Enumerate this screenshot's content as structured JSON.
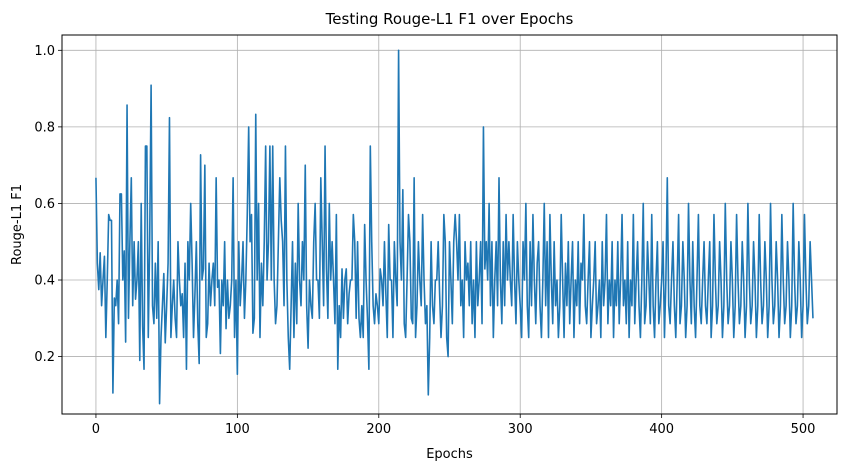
{
  "chart_data": {
    "type": "line",
    "title": "Testing Rouge-L1 F1 over Epochs",
    "xlabel": "Epochs",
    "ylabel": "Rouge-L1 F1",
    "xlim": [
      -24,
      524
    ],
    "ylim": [
      0.05,
      1.04
    ],
    "xticks": [
      0,
      100,
      200,
      300,
      400,
      500
    ],
    "xtick_labels": [
      "0",
      "100",
      "200",
      "300",
      "400",
      "500"
    ],
    "yticks": [
      0.2,
      0.4,
      0.6,
      0.8,
      1.0
    ],
    "ytick_labels": [
      "0.2",
      "0.4",
      "0.6",
      "0.8",
      "1.0"
    ],
    "grid": true,
    "line_color": "#1f77b4",
    "series": [
      {
        "x_start": 0,
        "x_step": 1,
        "values": [
          0.667,
          0.444,
          0.375,
          0.471,
          0.333,
          0.4,
          0.462,
          0.25,
          0.4,
          0.571,
          0.556,
          0.556,
          0.105,
          0.353,
          0.333,
          0.4,
          0.286,
          0.625,
          0.625,
          0.4,
          0.476,
          0.238,
          0.857,
          0.3,
          0.5,
          0.667,
          0.333,
          0.5,
          0.35,
          0.4,
          0.5,
          0.19,
          0.6,
          0.28,
          0.167,
          0.75,
          0.75,
          0.25,
          0.5,
          0.909,
          0.333,
          0.286,
          0.444,
          0.3,
          0.5,
          0.077,
          0.25,
          0.333,
          0.417,
          0.236,
          0.333,
          0.444,
          0.824,
          0.25,
          0.333,
          0.4,
          0.3,
          0.25,
          0.5,
          0.4,
          0.333,
          0.364,
          0.25,
          0.444,
          0.167,
          0.5,
          0.4,
          0.6,
          0.444,
          0.25,
          0.364,
          0.5,
          0.286,
          0.182,
          0.727,
          0.4,
          0.429,
          0.7,
          0.25,
          0.286,
          0.444,
          0.333,
          0.4,
          0.444,
          0.333,
          0.667,
          0.381,
          0.4,
          0.208,
          0.4,
          0.333,
          0.5,
          0.273,
          0.4,
          0.3,
          0.333,
          0.4,
          0.667,
          0.25,
          0.4,
          0.154,
          0.5,
          0.333,
          0.4,
          0.5,
          0.3,
          0.4,
          0.571,
          0.8,
          0.5,
          0.571,
          0.261,
          0.3,
          0.833,
          0.4,
          0.6,
          0.25,
          0.444,
          0.333,
          0.5,
          0.75,
          0.4,
          0.5,
          0.75,
          0.4,
          0.75,
          0.4,
          0.286,
          0.333,
          0.5,
          0.667,
          0.556,
          0.5,
          0.333,
          0.75,
          0.4,
          0.25,
          0.167,
          0.333,
          0.5,
          0.25,
          0.444,
          0.286,
          0.6,
          0.4,
          0.333,
          0.5,
          0.4,
          0.7,
          0.333,
          0.222,
          0.4,
          0.333,
          0.3,
          0.5,
          0.6,
          0.4,
          0.4,
          0.3,
          0.667,
          0.5,
          0.333,
          0.75,
          0.429,
          0.3,
          0.6,
          0.4,
          0.5,
          0.4,
          0.286,
          0.571,
          0.167,
          0.333,
          0.25,
          0.429,
          0.3,
          0.4,
          0.429,
          0.286,
          0.364,
          0.4,
          0.4,
          0.571,
          0.5,
          0.3,
          0.5,
          0.3,
          0.25,
          0.333,
          0.25,
          0.545,
          0.4,
          0.3,
          0.167,
          0.75,
          0.5,
          0.333,
          0.286,
          0.364,
          0.333,
          0.286,
          0.429,
          0.4,
          0.333,
          0.5,
          0.364,
          0.25,
          0.545,
          0.4,
          0.4,
          0.25,
          0.5,
          0.4,
          0.333,
          1.0,
          0.5,
          0.4,
          0.636,
          0.286,
          0.25,
          0.4,
          0.571,
          0.5,
          0.3,
          0.286,
          0.667,
          0.25,
          0.333,
          0.5,
          0.4,
          0.333,
          0.571,
          0.4,
          0.286,
          0.333,
          0.1,
          0.25,
          0.5,
          0.333,
          0.286,
          0.4,
          0.4,
          0.5,
          0.364,
          0.25,
          0.333,
          0.571,
          0.5,
          0.25,
          0.2,
          0.5,
          0.4,
          0.286,
          0.5,
          0.571,
          0.5,
          0.4,
          0.571,
          0.333,
          0.4,
          0.25,
          0.5,
          0.4,
          0.444,
          0.333,
          0.5,
          0.286,
          0.4,
          0.25,
          0.5,
          0.333,
          0.4,
          0.5,
          0.286,
          0.8,
          0.429,
          0.5,
          0.4,
          0.6,
          0.333,
          0.5,
          0.25,
          0.4,
          0.5,
          0.333,
          0.667,
          0.4,
          0.286,
          0.5,
          0.333,
          0.571,
          0.4,
          0.5,
          0.4,
          0.333,
          0.571,
          0.4,
          0.286,
          0.5,
          0.4,
          0.333,
          0.25,
          0.5,
          0.4,
          0.6,
          0.333,
          0.25,
          0.5,
          0.333,
          0.571,
          0.4,
          0.286,
          0.444,
          0.5,
          0.333,
          0.25,
          0.4,
          0.6,
          0.333,
          0.5,
          0.25,
          0.571,
          0.4,
          0.286,
          0.5,
          0.333,
          0.4,
          0.25,
          0.333,
          0.571,
          0.4,
          0.25,
          0.444,
          0.333,
          0.5,
          0.286,
          0.4,
          0.5,
          0.25,
          0.4,
          0.333,
          0.5,
          0.286,
          0.444,
          0.4,
          0.571,
          0.333,
          0.286,
          0.4,
          0.5,
          0.25,
          0.333,
          0.4,
          0.5,
          0.286,
          0.333,
          0.4,
          0.25,
          0.5,
          0.333,
          0.4,
          0.571,
          0.286,
          0.4,
          0.333,
          0.5,
          0.25,
          0.4,
          0.333,
          0.5,
          0.286,
          0.4,
          0.571,
          0.333,
          0.4,
          0.286,
          0.5,
          0.25,
          0.4,
          0.333,
          0.571,
          0.286,
          0.4,
          0.5,
          0.333,
          0.25,
          0.4,
          0.6,
          0.286,
          0.333,
          0.5,
          0.4,
          0.286,
          0.571,
          0.333,
          0.25,
          0.4,
          0.5,
          0.286,
          0.333,
          0.4,
          0.5,
          0.25,
          0.4,
          0.667,
          0.333,
          0.286,
          0.4,
          0.5,
          0.333,
          0.25,
          0.4,
          0.571,
          0.286,
          0.333,
          0.5,
          0.4,
          0.25,
          0.333,
          0.6,
          0.4,
          0.286,
          0.5,
          0.333,
          0.25,
          0.4,
          0.571,
          0.333,
          0.286,
          0.4,
          0.5,
          0.333,
          0.286,
          0.4,
          0.5,
          0.25,
          0.333,
          0.571,
          0.4,
          0.286,
          0.333,
          0.5,
          0.4,
          0.25,
          0.333,
          0.6,
          0.4,
          0.286,
          0.333,
          0.5,
          0.4,
          0.25,
          0.333,
          0.571,
          0.4,
          0.286,
          0.333,
          0.5,
          0.4,
          0.25,
          0.333,
          0.6,
          0.4,
          0.286,
          0.333,
          0.5,
          0.4,
          0.25,
          0.333,
          0.571,
          0.4,
          0.286,
          0.333,
          0.5,
          0.4,
          0.25,
          0.333,
          0.6,
          0.4,
          0.286,
          0.333,
          0.5,
          0.4,
          0.25,
          0.333,
          0.571,
          0.4,
          0.286,
          0.333,
          0.5,
          0.4,
          0.25,
          0.333,
          0.6,
          0.4,
          0.286,
          0.333,
          0.5,
          0.4,
          0.25,
          0.333,
          0.571,
          0.4,
          0.286,
          0.333,
          0.5,
          0.4,
          0.3
        ]
      }
    ]
  }
}
